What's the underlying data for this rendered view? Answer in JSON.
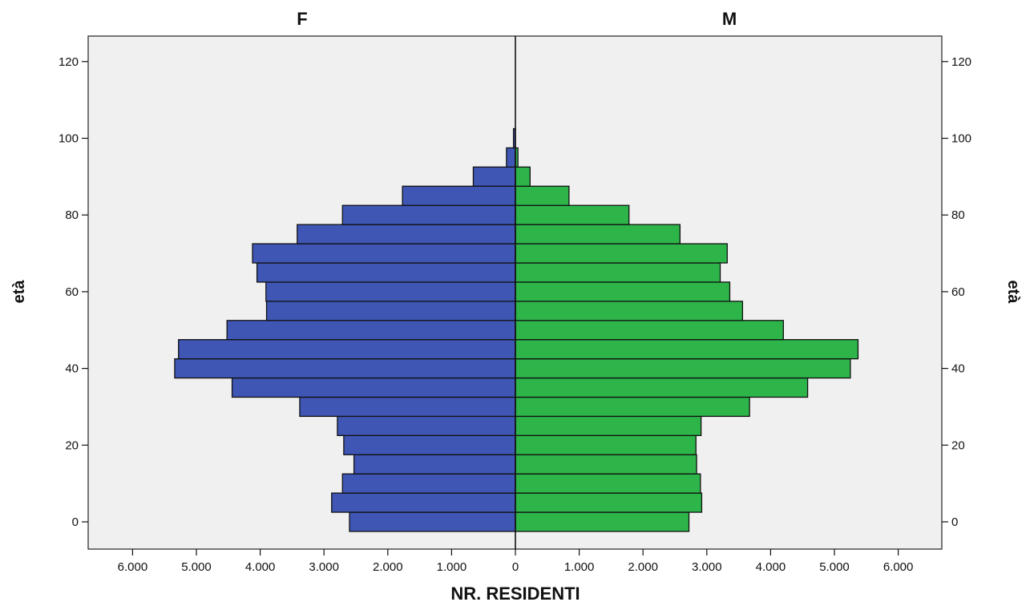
{
  "chart_data": {
    "type": "bar",
    "orientation": "horizontal",
    "subtype": "population-pyramid",
    "xlabel": "NR. RESIDENTI",
    "ylabel": "età",
    "left_title": "F",
    "right_title": "M",
    "xlim": [
      -6000,
      6000
    ],
    "ylim": [
      -7,
      127
    ],
    "x_ticks": [
      -6000,
      -5000,
      -4000,
      -3000,
      -2000,
      -1000,
      0,
      1000,
      2000,
      3000,
      4000,
      5000,
      6000
    ],
    "x_tick_labels": [
      "6.000",
      "5.000",
      "4.000",
      "3.000",
      "2.000",
      "1.000",
      "0",
      "1.000",
      "2.000",
      "3.000",
      "4.000",
      "5.000",
      "6.000"
    ],
    "y_ticks": [
      0,
      20,
      40,
      60,
      80,
      100,
      120
    ],
    "y_tick_labels": [
      "0",
      "20",
      "40",
      "60",
      "80",
      "100",
      "120"
    ],
    "bin_width": 5,
    "age_bins": [
      0,
      5,
      10,
      15,
      20,
      25,
      30,
      35,
      40,
      45,
      50,
      55,
      60,
      65,
      70,
      75,
      80,
      85,
      90,
      95,
      100
    ],
    "series": [
      {
        "name": "F",
        "color": "#3f56b5",
        "values": [
          2600,
          2880,
          2710,
          2530,
          2690,
          2790,
          3380,
          4440,
          5340,
          5280,
          4520,
          3900,
          3910,
          4050,
          4120,
          3420,
          2710,
          1770,
          660,
          140,
          30
        ]
      },
      {
        "name": "M",
        "color": "#2db54a",
        "values": [
          2720,
          2920,
          2900,
          2840,
          2830,
          2910,
          3670,
          4580,
          5250,
          5370,
          4200,
          3560,
          3360,
          3210,
          3320,
          2580,
          1780,
          840,
          230,
          40,
          0
        ]
      }
    ],
    "grid": false,
    "legend": "none",
    "background": "#f0f0f0"
  }
}
